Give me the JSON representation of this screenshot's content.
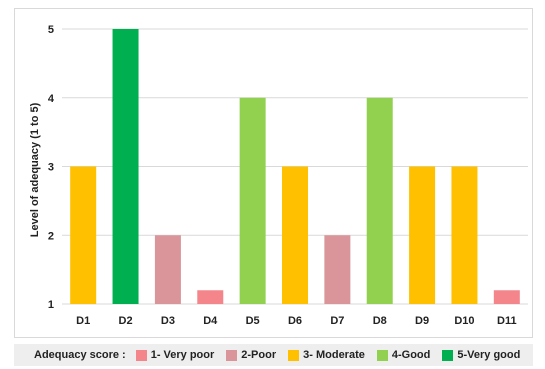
{
  "chart_data": {
    "type": "bar",
    "categories": [
      "D1",
      "D2",
      "D3",
      "D4",
      "D5",
      "D6",
      "D7",
      "D8",
      "D9",
      "D10",
      "D11"
    ],
    "values": [
      3,
      5,
      2,
      1.2,
      4,
      3,
      2,
      4,
      3,
      3,
      1.2
    ],
    "scores": [
      3,
      5,
      2,
      1,
      4,
      3,
      2,
      4,
      3,
      3,
      1
    ],
    "ylabel": "Level of adequacy (1 to 5)",
    "xlabel": "",
    "title": "",
    "ylim": [
      1,
      5
    ],
    "yticks": [
      "1",
      "2",
      "3",
      "4",
      "5"
    ],
    "grid": true,
    "legend_placement": "bottom",
    "legend": {
      "title": "Adequacy score :",
      "items": [
        {
          "label": "1- Very poor",
          "color": "#f4858a"
        },
        {
          "label": "2-Poor",
          "color": "#d9959a"
        },
        {
          "label": "3- Moderate",
          "color": "#ffc000"
        },
        {
          "label": "4-Good",
          "color": "#92d050"
        },
        {
          "label": "5-Very good",
          "color": "#00b050"
        }
      ]
    },
    "score_colors": {
      "1": "#f4858a",
      "2": "#d9959a",
      "3": "#ffc000",
      "4": "#92d050",
      "5": "#00b050"
    }
  }
}
